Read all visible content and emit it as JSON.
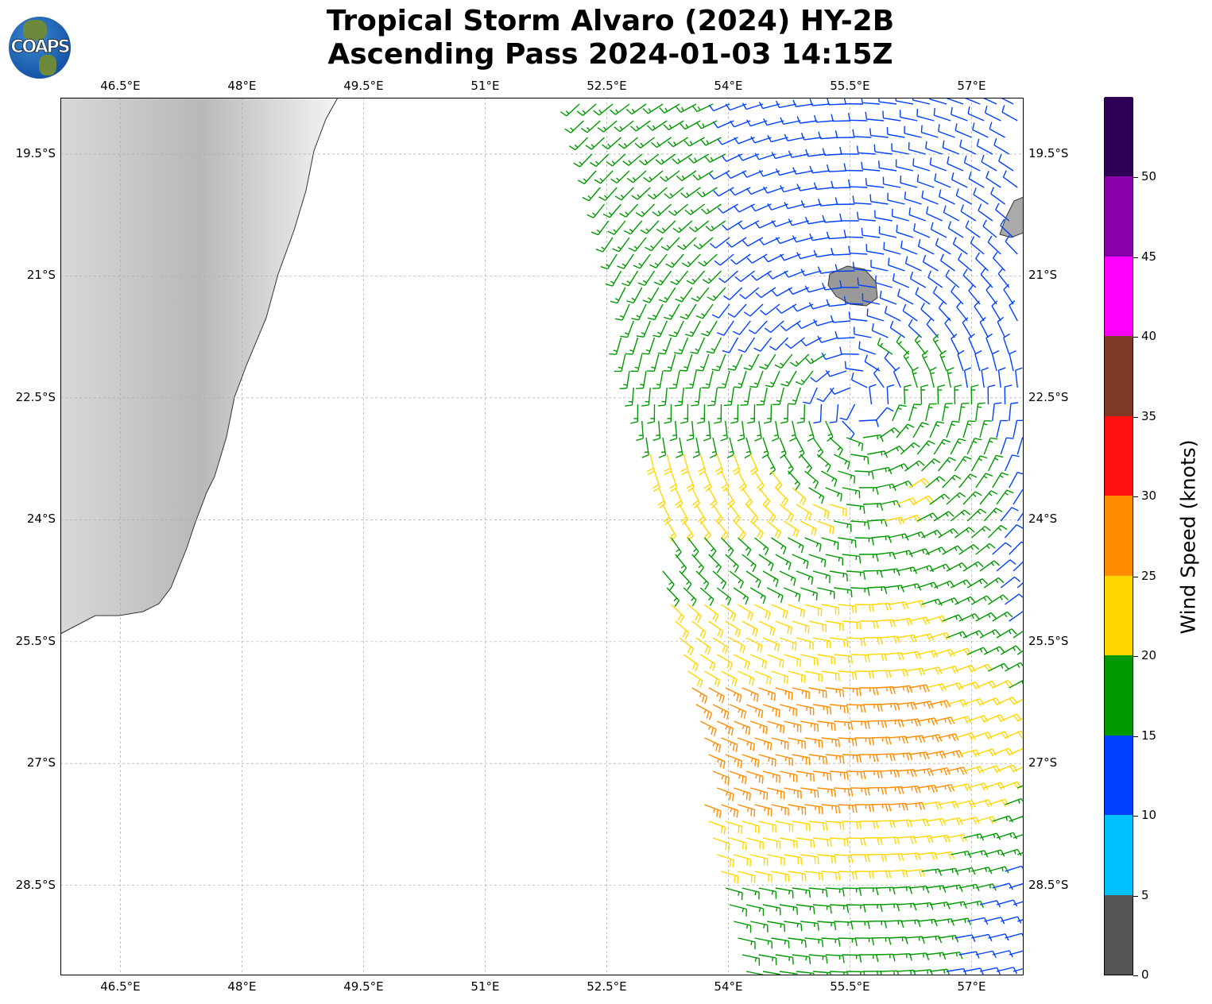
{
  "title": {
    "line1": "Tropical Storm Alvaro (2024) HY-2B",
    "line2": "Ascending Pass 2024-01-03 14:15Z"
  },
  "logo": {
    "text": "COAPS"
  },
  "map": {
    "lon_ticks": [
      "46.5°E",
      "48°E",
      "49.5°E",
      "51°E",
      "52.5°E",
      "54°E",
      "55.5°E",
      "57°E"
    ],
    "lon_values": [
      46.5,
      48,
      49.5,
      51,
      52.5,
      54,
      55.5,
      57
    ],
    "lat_ticks": [
      "19.5°S",
      "21°S",
      "22.5°S",
      "24°S",
      "25.5°S",
      "27°S",
      "28.5°S"
    ],
    "lat_values": [
      19.5,
      21,
      22.5,
      24,
      25.5,
      27,
      28.5
    ],
    "lon_range": [
      45.76,
      57.65
    ],
    "lat_range_south": [
      18.8,
      29.6
    ]
  },
  "colorbar": {
    "label": "Wind Speed (knots)",
    "ticks": [
      "0",
      "5",
      "10",
      "15",
      "20",
      "25",
      "30",
      "35",
      "40",
      "45",
      "50"
    ],
    "bins": [
      {
        "min": 0,
        "color": "#555555"
      },
      {
        "min": 5,
        "color": "#00bfff"
      },
      {
        "min": 10,
        "color": "#0040ff"
      },
      {
        "min": 15,
        "color": "#009900"
      },
      {
        "min": 20,
        "color": "#ffd700"
      },
      {
        "min": 25,
        "color": "#ff8c00"
      },
      {
        "min": 30,
        "color": "#ff1010"
      },
      {
        "min": 35,
        "color": "#803b28"
      },
      {
        "min": 40,
        "color": "#ff00ff"
      },
      {
        "min": 45,
        "color": "#8800aa"
      },
      {
        "min": 50,
        "color": "#2d0055"
      }
    ]
  }
}
